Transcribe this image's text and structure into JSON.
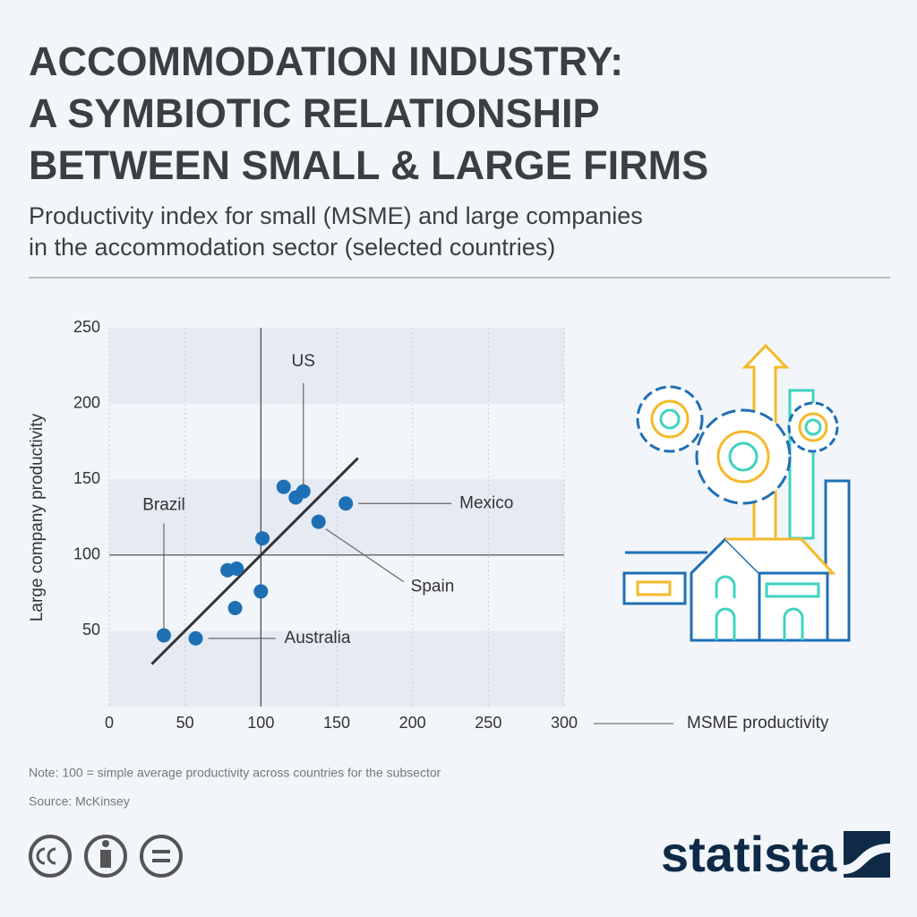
{
  "chart_data": {
    "type": "scatter",
    "title": [
      "ACCOMMODATION INDUSTRY:",
      "A SYMBIOTIC RELATIONSHIP",
      "BETWEEN SMALL & LARGE FIRMS"
    ],
    "subtitle": [
      "Productivity index for small (MSME) and large companies",
      "in the accommodation sector (selected countries)"
    ],
    "x_label": "MSME productivity",
    "y_label": "Large company productivity",
    "x": [
      36,
      57,
      78,
      84,
      83,
      100,
      101,
      115,
      123,
      128,
      138,
      156
    ],
    "y": [
      47,
      45,
      90,
      91,
      65,
      76,
      111,
      145,
      138,
      142,
      122,
      134
    ],
    "labels": [
      "Brazil",
      "Australia",
      null,
      null,
      null,
      null,
      null,
      null,
      null,
      "US",
      "Spain",
      "Mexico"
    ],
    "color": "#1f6fb5",
    "trend_line": {
      "x": [
        28,
        164
      ],
      "y": [
        28,
        164
      ]
    },
    "reference_lines": {
      "x": 100,
      "y": 100
    },
    "xlim": [
      0,
      300
    ],
    "xticks": [
      0,
      50,
      100,
      150,
      200,
      250,
      300
    ],
    "ylim": [
      0,
      250
    ],
    "yticks": [
      50,
      100,
      150,
      200,
      250
    ],
    "grid": true,
    "note": "Note: 100 = simple average productivity across countries for the subsector",
    "source": "Source: McKinsey",
    "brand": "statista"
  }
}
